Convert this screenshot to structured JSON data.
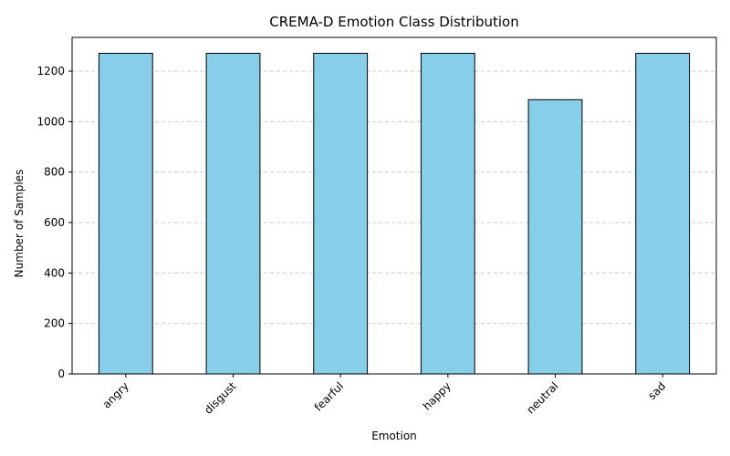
{
  "chart_data": {
    "type": "bar",
    "title": "CREMA-D Emotion Class Distribution",
    "xlabel": "Emotion",
    "ylabel": "Number of Samples",
    "categories": [
      "angry",
      "disgust",
      "fearful",
      "happy",
      "neutral",
      "sad"
    ],
    "values": [
      1271,
      1271,
      1271,
      1271,
      1087,
      1271
    ],
    "ylim": [
      0,
      1334
    ],
    "yticks": [
      0,
      200,
      400,
      600,
      800,
      1000,
      1200
    ],
    "grid": "y-dashed",
    "bar_color": "#87ceeb",
    "edge_color": "#000000",
    "grid_color": "#cccccc"
  }
}
